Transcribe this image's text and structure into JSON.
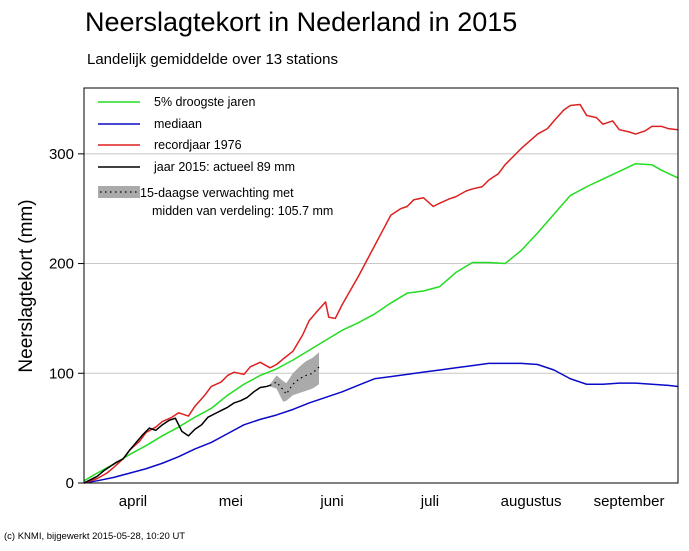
{
  "chart_data": {
    "type": "line",
    "title": "Neerslagtekort in Nederland in 2015",
    "subtitle": "Landelijk gemiddelde over 13 stations",
    "ylabel": "Neerslagtekort (mm)",
    "xlabel": "",
    "x_unit": "day of year (2015)",
    "xlim": [
      91,
      273
    ],
    "ylim": [
      0,
      360
    ],
    "y_ticks": [
      0,
      100,
      200,
      300
    ],
    "month_labels": [
      {
        "label": "april",
        "day": 106
      },
      {
        "label": "mei",
        "day": 136
      },
      {
        "label": "juni",
        "day": 167
      },
      {
        "label": "juli",
        "day": 197
      },
      {
        "label": "augustus",
        "day": 228
      },
      {
        "label": "september",
        "day": 258
      }
    ],
    "grid": true,
    "legend_position": "top-left",
    "series": [
      {
        "name": "5% droogste jaren",
        "color": "#22dd22",
        "x": [
          91,
          95,
          100,
          105,
          110,
          115,
          120,
          125,
          130,
          135,
          140,
          145,
          150,
          155,
          160,
          165,
          170,
          175,
          180,
          185,
          190,
          195,
          200,
          205,
          210,
          215,
          220,
          225,
          230,
          235,
          240,
          245,
          250,
          255,
          260,
          265,
          268,
          273
        ],
        "y": [
          2,
          9,
          17,
          26,
          34,
          43,
          51,
          60,
          68,
          80,
          90,
          98,
          104,
          112,
          121,
          130,
          139,
          146,
          154,
          164,
          173,
          175,
          179,
          192,
          201,
          201,
          200,
          212,
          228,
          245,
          262,
          270,
          277,
          284,
          291,
          290,
          285,
          278
        ]
      },
      {
        "name": "mediaan",
        "color": "#0a0ac8",
        "x": [
          91,
          95,
          100,
          105,
          110,
          115,
          120,
          125,
          130,
          135,
          140,
          145,
          150,
          155,
          160,
          165,
          170,
          175,
          180,
          185,
          190,
          195,
          200,
          205,
          210,
          215,
          220,
          225,
          230,
          235,
          240,
          245,
          250,
          255,
          260,
          265,
          270,
          273
        ],
        "y": [
          0,
          2,
          5,
          9,
          13,
          18,
          24,
          31,
          37,
          45,
          53,
          58,
          62,
          67,
          73,
          78,
          83,
          89,
          95,
          97,
          99,
          101,
          103,
          105,
          107,
          109,
          109,
          109,
          108,
          103,
          95,
          90,
          90,
          91,
          91,
          90,
          89,
          88
        ]
      },
      {
        "name": "recordjaar 1976",
        "color": "#dd2020",
        "x": [
          91,
          95,
          98,
          100,
          103,
          105,
          108,
          110,
          113,
          115,
          118,
          120,
          123,
          125,
          128,
          130,
          133,
          135,
          137,
          140,
          142,
          145,
          148,
          150,
          152,
          155,
          158,
          160,
          162,
          165,
          166,
          168,
          170,
          175,
          180,
          185,
          188,
          190,
          192,
          195,
          198,
          200,
          203,
          205,
          208,
          210,
          213,
          215,
          218,
          220,
          225,
          230,
          233,
          235,
          238,
          240,
          243,
          245,
          248,
          250,
          253,
          255,
          258,
          260,
          263,
          265,
          268,
          270,
          273
        ],
        "y": [
          0,
          4,
          9,
          14,
          22,
          30,
          38,
          46,
          51,
          56,
          60,
          64,
          61,
          70,
          80,
          88,
          92,
          98,
          101,
          99,
          106,
          110,
          105,
          108,
          113,
          120,
          135,
          148,
          155,
          165,
          151,
          150,
          162,
          188,
          216,
          244,
          250,
          252,
          258,
          260,
          252,
          255,
          259,
          261,
          266,
          268,
          270,
          276,
          282,
          290,
          305,
          318,
          323,
          330,
          340,
          344,
          345,
          335,
          333,
          327,
          330,
          322,
          320,
          318,
          321,
          325,
          325,
          323,
          322
        ]
      },
      {
        "name": "jaar 2015: actueel 89 mm",
        "color": "#000000",
        "x": [
          91,
          93,
          95,
          97,
          99,
          101,
          103,
          105,
          107,
          109,
          111,
          113,
          115,
          117,
          119,
          121,
          123,
          125,
          127,
          129,
          131,
          133,
          135,
          137,
          139,
          141,
          143,
          145,
          147,
          148
        ],
        "y": [
          0,
          3,
          6,
          11,
          15,
          19,
          22,
          30,
          37,
          44,
          50,
          48,
          53,
          57,
          59,
          47,
          43,
          49,
          53,
          60,
          63,
          66,
          69,
          73,
          75,
          78,
          83,
          87,
          88,
          89
        ]
      }
    ],
    "forecast": {
      "name": "15-daagse verwachting met midden van verdeling: 105.7 mm",
      "color": "#aaaaaa",
      "x": [
        148,
        150,
        152,
        153,
        155,
        157,
        159,
        161,
        163
      ],
      "median": [
        89,
        92,
        85,
        81,
        90,
        95,
        98,
        100,
        105.7
      ],
      "lower": [
        88,
        86,
        74,
        75,
        80,
        82,
        84,
        86,
        90
      ],
      "upper": [
        90,
        98,
        93,
        91,
        100,
        106,
        111,
        114,
        119
      ]
    },
    "legend": [
      {
        "label": "5% droogste jaren",
        "color": "#22dd22",
        "kind": "line"
      },
      {
        "label": "mediaan",
        "color": "#0a0ac8",
        "kind": "line"
      },
      {
        "label": "recordjaar 1976",
        "color": "#dd2020",
        "kind": "line"
      },
      {
        "label": "jaar 2015: actueel 89 mm",
        "color": "#000000",
        "kind": "line"
      },
      {
        "label": "15-daagse verwachting met",
        "label2": "midden van verdeling: 105.7 mm",
        "color": "#aaaaaa",
        "kind": "band"
      }
    ]
  },
  "footer": "(c) KNMI, bijgewerkt 2015-05-28, 10:20 UT"
}
